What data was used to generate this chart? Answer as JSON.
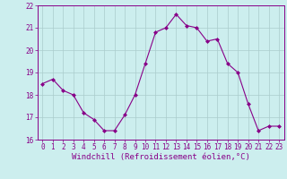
{
  "x": [
    0,
    1,
    2,
    3,
    4,
    5,
    6,
    7,
    8,
    9,
    10,
    11,
    12,
    13,
    14,
    15,
    16,
    17,
    18,
    19,
    20,
    21,
    22,
    23
  ],
  "y": [
    18.5,
    18.7,
    18.2,
    18.0,
    17.2,
    16.9,
    16.4,
    16.4,
    17.1,
    18.0,
    19.4,
    20.8,
    21.0,
    21.6,
    21.1,
    21.0,
    20.4,
    20.5,
    19.4,
    19.0,
    17.6,
    16.4,
    16.6,
    16.6
  ],
  "line_color": "#880088",
  "marker": "D",
  "marker_size": 2.0,
  "line_width": 0.8,
  "bg_color": "#cceeee",
  "grid_color": "#aacccc",
  "xlabel": "Windchill (Refroidissement éolien,°C)",
  "xlabel_fontsize": 6.5,
  "tick_fontsize": 5.5,
  "ylim": [
    16,
    22
  ],
  "xlim": [
    -0.5,
    23.5
  ],
  "yticks": [
    16,
    17,
    18,
    19,
    20,
    21,
    22
  ],
  "xticks": [
    0,
    1,
    2,
    3,
    4,
    5,
    6,
    7,
    8,
    9,
    10,
    11,
    12,
    13,
    14,
    15,
    16,
    17,
    18,
    19,
    20,
    21,
    22,
    23
  ]
}
